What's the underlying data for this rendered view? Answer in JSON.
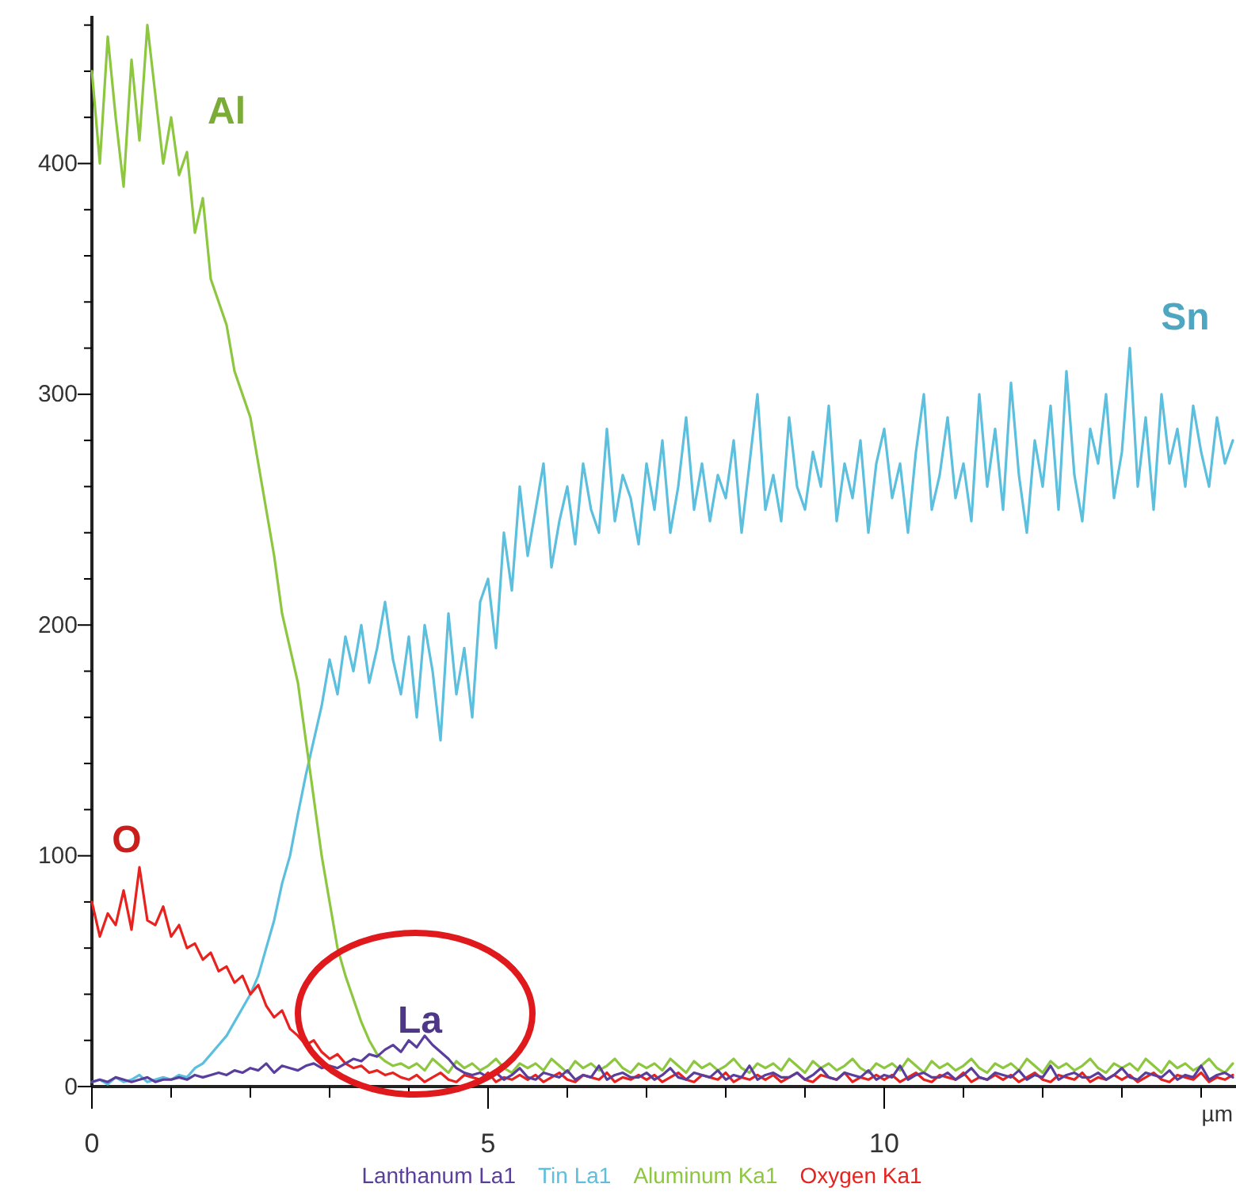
{
  "chart_data": {
    "type": "line",
    "xlabel": "µm",
    "legend": "bottom",
    "marker": "none",
    "line_style": "solid",
    "grid": false,
    "xlim": [
      0,
      14.44
    ],
    "ylim": [
      0,
      464
    ],
    "xticks": [
      0,
      {
        "value": 1,
        "label": null
      },
      {
        "value": 2,
        "label": null
      },
      {
        "value": 3,
        "label": null
      },
      {
        "value": 4,
        "label": null
      },
      5,
      {
        "value": 6,
        "label": null
      },
      {
        "value": 7,
        "label": null
      },
      {
        "value": 8,
        "label": null
      },
      {
        "value": 9,
        "label": null
      },
      10,
      {
        "value": 11,
        "label": null
      },
      {
        "value": 12,
        "label": null
      },
      {
        "value": 13,
        "label": null
      },
      {
        "value": 14,
        "label": null
      }
    ],
    "yticks": [
      0,
      {
        "value": 20,
        "label": null
      },
      {
        "value": 40,
        "label": null
      },
      {
        "value": 60,
        "label": null
      },
      {
        "value": 80,
        "label": null
      },
      100,
      {
        "value": 120,
        "label": null
      },
      {
        "value": 140,
        "label": null
      },
      {
        "value": 160,
        "label": null
      },
      {
        "value": 180,
        "label": null
      },
      200,
      {
        "value": 220,
        "label": null
      },
      {
        "value": 240,
        "label": null
      },
      {
        "value": 260,
        "label": null
      },
      {
        "value": 280,
        "label": null
      },
      300,
      {
        "value": 320,
        "label": null
      },
      {
        "value": 340,
        "label": null
      },
      {
        "value": 360,
        "label": null
      },
      {
        "value": 380,
        "label": null
      },
      400,
      {
        "value": 420,
        "label": null
      },
      {
        "value": 440,
        "label": null
      },
      {
        "value": 460,
        "label": null
      }
    ],
    "x": [
      0,
      0.1,
      0.2,
      0.3,
      0.4,
      0.5,
      0.6,
      0.7,
      0.8,
      0.9,
      1,
      1.1,
      1.2,
      1.3,
      1.4,
      1.5,
      1.6,
      1.7,
      1.8,
      1.9,
      2,
      2.1,
      2.2,
      2.3,
      2.4,
      2.5,
      2.6,
      2.7,
      2.8,
      2.9,
      3,
      3.1,
      3.2,
      3.3,
      3.4,
      3.5,
      3.6,
      3.7,
      3.8,
      3.9,
      4,
      4.1,
      4.2,
      4.3,
      4.4,
      4.5,
      4.6,
      4.7,
      4.8,
      4.9,
      5,
      5.1,
      5.2,
      5.3,
      5.4,
      5.5,
      5.6,
      5.7,
      5.8,
      5.9,
      6,
      6.1,
      6.2,
      6.3,
      6.4,
      6.5,
      6.6,
      6.7,
      6.8,
      6.9,
      7,
      7.1,
      7.2,
      7.3,
      7.4,
      7.5,
      7.6,
      7.7,
      7.8,
      7.9,
      8,
      8.1,
      8.2,
      8.3,
      8.4,
      8.5,
      8.6,
      8.7,
      8.8,
      8.9,
      9,
      9.1,
      9.2,
      9.3,
      9.4,
      9.5,
      9.6,
      9.7,
      9.8,
      9.9,
      10,
      10.1,
      10.2,
      10.3,
      10.4,
      10.5,
      10.6,
      10.7,
      10.8,
      10.9,
      11,
      11.1,
      11.2,
      11.3,
      11.4,
      11.5,
      11.6,
      11.7,
      11.8,
      11.9,
      12,
      12.1,
      12.2,
      12.3,
      12.4,
      12.5,
      12.6,
      12.7,
      12.8,
      12.9,
      13,
      13.1,
      13.2,
      13.3,
      13.4,
      13.5,
      13.6,
      13.7,
      13.8,
      13.9,
      14,
      14.1,
      14.2,
      14.3,
      14.4
    ],
    "series": [
      {
        "name": "Lanthanum La1",
        "color": "#5a3e9e",
        "values": [
          2,
          3,
          2,
          4,
          3,
          2,
          3,
          4,
          2,
          3,
          3,
          4,
          3,
          5,
          4,
          5,
          6,
          5,
          7,
          6,
          8,
          7,
          10,
          6,
          9,
          8,
          7,
          9,
          10,
          8,
          9,
          8,
          10,
          12,
          11,
          14,
          13,
          16,
          18,
          15,
          20,
          17,
          22,
          18,
          15,
          12,
          8,
          6,
          5,
          6,
          4,
          6,
          3,
          5,
          8,
          4,
          3,
          6,
          5,
          4,
          7,
          3,
          5,
          4,
          9,
          3,
          5,
          6,
          4,
          4,
          6,
          3,
          5,
          8,
          4,
          3,
          6,
          5,
          4,
          7,
          3,
          5,
          4,
          9,
          3,
          5,
          6,
          4,
          4,
          6,
          3,
          5,
          8,
          4,
          3,
          6,
          5,
          4,
          7,
          3,
          5,
          4,
          9,
          3,
          5,
          6,
          4,
          4,
          6,
          3,
          5,
          8,
          4,
          3,
          6,
          5,
          4,
          7,
          3,
          5,
          4,
          9,
          3,
          5,
          6,
          4,
          4,
          6,
          3,
          5,
          8,
          4,
          3,
          6,
          5,
          4,
          7,
          3,
          5,
          4,
          9,
          3,
          5,
          6,
          4
        ]
      },
      {
        "name": "Tin La1",
        "color": "#5bbfdd",
        "values": [
          2,
          3,
          1,
          4,
          2,
          3,
          5,
          2,
          3,
          4,
          3,
          5,
          4,
          8,
          10,
          14,
          18,
          22,
          28,
          34,
          40,
          48,
          60,
          72,
          88,
          100,
          118,
          135,
          150,
          165,
          185,
          170,
          195,
          180,
          200,
          175,
          190,
          210,
          185,
          170,
          195,
          160,
          200,
          180,
          150,
          205,
          170,
          190,
          160,
          210,
          220,
          190,
          240,
          215,
          260,
          230,
          250,
          270,
          225,
          245,
          260,
          235,
          270,
          250,
          240,
          285,
          245,
          265,
          255,
          235,
          270,
          250,
          280,
          240,
          260,
          290,
          250,
          270,
          245,
          265,
          255,
          280,
          240,
          270,
          300,
          250,
          265,
          245,
          290,
          260,
          250,
          275,
          260,
          295,
          245,
          270,
          255,
          280,
          240,
          270,
          285,
          255,
          270,
          240,
          275,
          300,
          250,
          265,
          290,
          255,
          270,
          245,
          300,
          260,
          285,
          250,
          305,
          265,
          240,
          280,
          260,
          295,
          250,
          310,
          265,
          245,
          285,
          270,
          300,
          255,
          275,
          320,
          260,
          290,
          250,
          300,
          270,
          285,
          260,
          295,
          275,
          260,
          290,
          270,
          280
        ]
      },
      {
        "name": "Aluminum Ka1",
        "color": "#8dc63f",
        "values": [
          440,
          400,
          455,
          420,
          390,
          445,
          410,
          460,
          430,
          400,
          420,
          395,
          405,
          370,
          385,
          350,
          340,
          330,
          310,
          300,
          290,
          270,
          250,
          230,
          205,
          190,
          175,
          150,
          125,
          100,
          80,
          60,
          48,
          38,
          28,
          20,
          14,
          11,
          9,
          10,
          8,
          10,
          7,
          12,
          9,
          6,
          11,
          8,
          10,
          7,
          9,
          12,
          8,
          6,
          10,
          8,
          10,
          7,
          12,
          9,
          6,
          11,
          8,
          10,
          7,
          9,
          12,
          8,
          6,
          10,
          8,
          10,
          7,
          12,
          9,
          6,
          11,
          8,
          10,
          7,
          9,
          12,
          8,
          6,
          10,
          8,
          10,
          7,
          12,
          9,
          6,
          11,
          8,
          10,
          7,
          9,
          12,
          8,
          6,
          10,
          8,
          10,
          7,
          12,
          9,
          6,
          11,
          8,
          10,
          7,
          9,
          12,
          8,
          6,
          10,
          8,
          10,
          7,
          12,
          9,
          6,
          11,
          8,
          10,
          7,
          9,
          12,
          8,
          6,
          10,
          8,
          10,
          7,
          12,
          9,
          6,
          11,
          8,
          10,
          7,
          9,
          12,
          8,
          6,
          10
        ]
      },
      {
        "name": "Oxygen Ka1",
        "color": "#e8231f",
        "values": [
          80,
          65,
          75,
          70,
          85,
          68,
          95,
          72,
          70,
          78,
          65,
          70,
          60,
          62,
          55,
          58,
          50,
          52,
          45,
          48,
          40,
          44,
          35,
          30,
          33,
          25,
          22,
          18,
          20,
          15,
          12,
          14,
          10,
          8,
          9,
          6,
          7,
          5,
          6,
          4,
          3,
          5,
          2,
          4,
          6,
          3,
          2,
          5,
          4,
          3,
          6,
          2,
          4,
          3,
          5,
          3,
          5,
          2,
          4,
          6,
          3,
          2,
          5,
          4,
          3,
          6,
          2,
          4,
          3,
          5,
          3,
          5,
          2,
          4,
          6,
          3,
          2,
          5,
          4,
          3,
          6,
          2,
          4,
          3,
          5,
          3,
          5,
          2,
          4,
          6,
          3,
          2,
          5,
          4,
          3,
          6,
          2,
          4,
          3,
          5,
          3,
          5,
          2,
          4,
          6,
          3,
          2,
          5,
          4,
          3,
          6,
          2,
          4,
          3,
          5,
          3,
          5,
          2,
          4,
          6,
          3,
          2,
          5,
          4,
          3,
          6,
          2,
          4,
          3,
          5,
          3,
          5,
          2,
          4,
          6,
          3,
          2,
          5,
          4,
          3,
          6,
          2,
          4,
          3,
          5
        ]
      }
    ],
    "annotations": [
      "La",
      "Sn",
      "Al",
      "O"
    ]
  }
}
